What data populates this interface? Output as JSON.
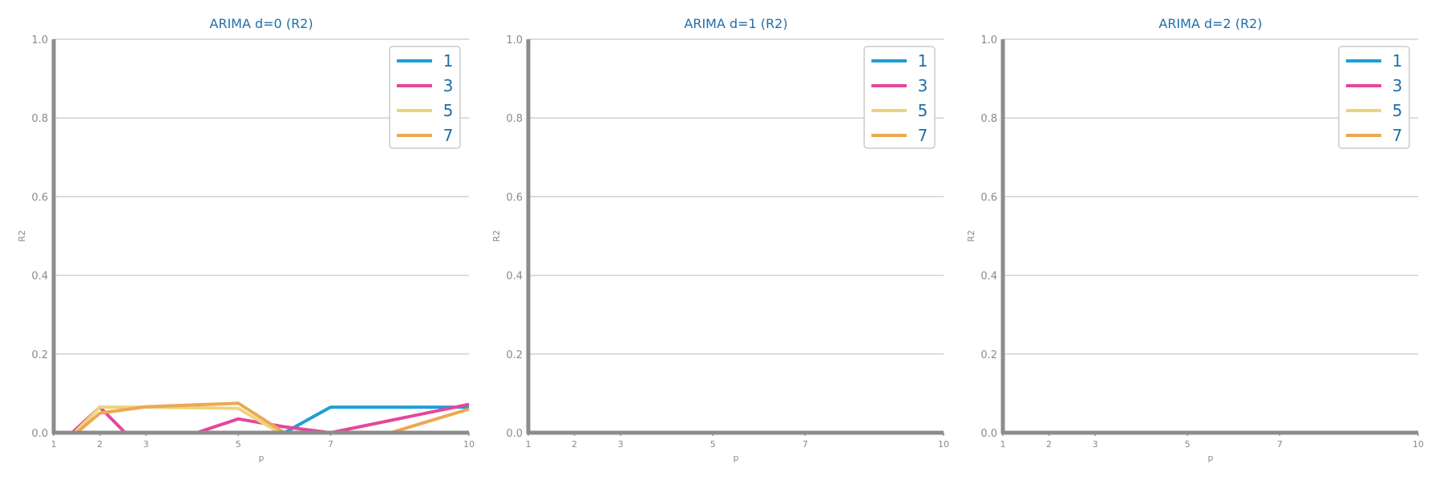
{
  "chart_data": [
    {
      "type": "line",
      "title": "ARIMA d=0 (R2)",
      "xlabel": "p",
      "ylabel": "R2",
      "xlim": [
        1,
        10
      ],
      "ylim": [
        0,
        1.0
      ],
      "x_ticks": [
        1,
        2,
        3,
        5,
        7,
        10
      ],
      "y_ticks": [
        "0.0",
        "0.2",
        "0.4",
        "0.6",
        "0.8",
        "1.0"
      ],
      "grid": "horizontal",
      "legend_position": "top-right",
      "series": [
        {
          "name": "1",
          "color": "#1f9fd6",
          "x": [
            1.4,
            2,
            3,
            5,
            6,
            7,
            10
          ],
          "y": [
            0.0,
            0.0,
            0.0,
            0.0,
            0.0,
            0.065,
            0.065
          ]
        },
        {
          "name": "3",
          "color": "#e4479a",
          "x": [
            1.4,
            2,
            2.55,
            4.1,
            5,
            6,
            7,
            10
          ],
          "y": [
            0.0,
            0.065,
            0.0,
            0.0,
            0.035,
            0.015,
            0.0,
            0.072
          ]
        },
        {
          "name": "5",
          "color": "#ecd47e",
          "x": [
            1.45,
            2,
            3,
            5,
            5.9,
            10
          ],
          "y": [
            0.0,
            0.065,
            0.065,
            0.062,
            0.0,
            0.0
          ]
        },
        {
          "name": "7",
          "color": "#eca852",
          "x": [
            1.5,
            2,
            3,
            5,
            6,
            8.3,
            10
          ],
          "y": [
            0.0,
            0.05,
            0.066,
            0.075,
            0.0,
            0.0,
            0.06
          ]
        }
      ]
    },
    {
      "type": "line",
      "title": "ARIMA d=1 (R2)",
      "xlabel": "p",
      "ylabel": "R2",
      "xlim": [
        1,
        10
      ],
      "ylim": [
        0,
        1.0
      ],
      "x_ticks": [
        1,
        2,
        3,
        5,
        7,
        10
      ],
      "y_ticks": [
        "0.0",
        "0.2",
        "0.4",
        "0.6",
        "0.8",
        "1.0"
      ],
      "grid": "horizontal",
      "legend_position": "top-right",
      "series": [
        {
          "name": "1",
          "color": "#1f9fd6",
          "x": [
            1,
            10
          ],
          "y": [
            0.0,
            0.0
          ]
        },
        {
          "name": "3",
          "color": "#e4479a",
          "x": [
            1,
            10
          ],
          "y": [
            0.0,
            0.0
          ]
        },
        {
          "name": "5",
          "color": "#ecd47e",
          "x": [
            1,
            10
          ],
          "y": [
            0.0,
            0.0
          ]
        },
        {
          "name": "7",
          "color": "#eca852",
          "x": [
            1,
            10
          ],
          "y": [
            0.0,
            0.0
          ]
        }
      ]
    },
    {
      "type": "line",
      "title": "ARIMA d=2 (R2)",
      "xlabel": "p",
      "ylabel": "R2",
      "xlim": [
        1,
        10
      ],
      "ylim": [
        0,
        1.0
      ],
      "x_ticks": [
        1,
        2,
        3,
        5,
        7,
        10
      ],
      "y_ticks": [
        "0.0",
        "0.2",
        "0.4",
        "0.6",
        "0.8",
        "1.0"
      ],
      "grid": "horizontal",
      "legend_position": "top-right",
      "series": [
        {
          "name": "1",
          "color": "#1f9fd6",
          "x": [
            1,
            10
          ],
          "y": [
            0.0,
            0.0
          ]
        },
        {
          "name": "3",
          "color": "#e4479a",
          "x": [
            1,
            10
          ],
          "y": [
            0.0,
            0.0
          ]
        },
        {
          "name": "5",
          "color": "#ecd47e",
          "x": [
            1,
            10
          ],
          "y": [
            0.0,
            0.0
          ]
        },
        {
          "name": "7",
          "color": "#eca852",
          "x": [
            1,
            10
          ],
          "y": [
            0.0,
            0.0
          ]
        }
      ]
    }
  ]
}
